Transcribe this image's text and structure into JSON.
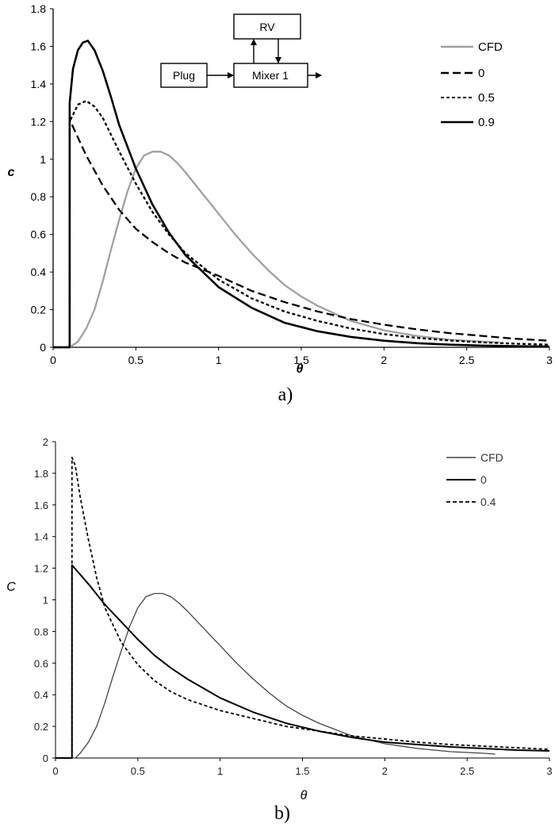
{
  "chart_data": [
    {
      "type": "line",
      "caption": "a)",
      "xlabel": "θ",
      "ylabel": "c",
      "xlim": [
        0,
        3
      ],
      "ylim": [
        0,
        1.8
      ],
      "xticks": [
        "0",
        "0.5",
        "1",
        "1.5",
        "2",
        "2.5",
        "3"
      ],
      "yticks": [
        "0",
        "0.2",
        "0.4",
        "0.6",
        "0.8",
        "1",
        "1.2",
        "1.4",
        "1.6",
        "1.8"
      ],
      "grid": false,
      "legend_position": "top-right",
      "inset_diagram": {
        "blocks": [
          "RV",
          "Plug",
          "Mixer 1"
        ]
      },
      "series": [
        {
          "name": "CFD",
          "color": "#a0a0a0",
          "dash": "solid",
          "x": [
            0,
            0.1,
            0.15,
            0.2,
            0.25,
            0.3,
            0.35,
            0.4,
            0.45,
            0.5,
            0.55,
            0.6,
            0.65,
            0.7,
            0.75,
            0.8,
            0.9,
            1.0,
            1.1,
            1.2,
            1.3,
            1.4,
            1.5,
            1.6,
            1.7,
            1.8,
            2.0,
            2.2,
            2.4,
            2.6,
            2.7
          ],
          "y": [
            0,
            0,
            0.03,
            0.1,
            0.2,
            0.35,
            0.52,
            0.68,
            0.83,
            0.95,
            1.02,
            1.04,
            1.04,
            1.02,
            0.98,
            0.93,
            0.82,
            0.71,
            0.6,
            0.5,
            0.41,
            0.33,
            0.27,
            0.22,
            0.18,
            0.14,
            0.09,
            0.06,
            0.04,
            0.03,
            0.025
          ]
        },
        {
          "name": "0",
          "color": "#000000",
          "dash": "long",
          "x": [
            0,
            0.1,
            0.1,
            0.2,
            0.3,
            0.4,
            0.5,
            0.6,
            0.7,
            0.8,
            1.0,
            1.2,
            1.4,
            1.6,
            1.8,
            2.0,
            2.2,
            2.4,
            2.6,
            2.8,
            3.0
          ],
          "y": [
            0,
            0,
            1.21,
            1.02,
            0.86,
            0.73,
            0.63,
            0.56,
            0.5,
            0.45,
            0.38,
            0.3,
            0.24,
            0.19,
            0.15,
            0.12,
            0.095,
            0.075,
            0.06,
            0.045,
            0.035
          ]
        },
        {
          "name": "0.5",
          "color": "#000000",
          "dash": "short",
          "x": [
            0,
            0.1,
            0.1,
            0.15,
            0.2,
            0.25,
            0.3,
            0.35,
            0.4,
            0.5,
            0.6,
            0.7,
            0.8,
            1.0,
            1.2,
            1.4,
            1.6,
            1.8,
            2.0,
            2.2,
            2.4,
            2.6,
            2.8,
            3.0
          ],
          "y": [
            0,
            0,
            1.2,
            1.29,
            1.31,
            1.28,
            1.22,
            1.13,
            1.04,
            0.87,
            0.72,
            0.6,
            0.5,
            0.36,
            0.26,
            0.19,
            0.14,
            0.1,
            0.07,
            0.05,
            0.036,
            0.026,
            0.019,
            0.014
          ]
        },
        {
          "name": "0.9",
          "color": "#000000",
          "dash": "solid",
          "x": [
            0,
            0.1,
            0.1,
            0.12,
            0.15,
            0.18,
            0.21,
            0.25,
            0.3,
            0.35,
            0.4,
            0.5,
            0.6,
            0.7,
            0.8,
            1.0,
            1.2,
            1.4,
            1.6,
            1.8,
            2.0,
            2.2,
            2.4,
            2.6,
            2.8,
            3.0
          ],
          "y": [
            0,
            0,
            1.3,
            1.48,
            1.58,
            1.62,
            1.63,
            1.58,
            1.47,
            1.33,
            1.18,
            0.95,
            0.76,
            0.61,
            0.49,
            0.32,
            0.21,
            0.13,
            0.085,
            0.055,
            0.035,
            0.022,
            0.014,
            0.009,
            0.006,
            0.004
          ]
        }
      ]
    },
    {
      "type": "line",
      "caption": "b)",
      "xlabel": "θ",
      "ylabel": "C",
      "xlim": [
        0,
        3
      ],
      "ylim": [
        0,
        2
      ],
      "xticks": [
        "0",
        "0.5",
        "1",
        "1.5",
        "2",
        "2.5",
        "3"
      ],
      "yticks": [
        "0",
        "0.2",
        "0.4",
        "0.6",
        "0.8",
        "1",
        "1.2",
        "1.4",
        "1.6",
        "1.8",
        "2"
      ],
      "grid": false,
      "legend_position": "top-right",
      "series": [
        {
          "name": "CFD",
          "color": "#444444",
          "dash": "solid",
          "x": [
            0,
            0.12,
            0.15,
            0.2,
            0.25,
            0.3,
            0.35,
            0.4,
            0.45,
            0.5,
            0.55,
            0.6,
            0.65,
            0.7,
            0.75,
            0.8,
            0.9,
            1.0,
            1.1,
            1.2,
            1.3,
            1.4,
            1.5,
            1.6,
            1.7,
            1.8,
            2.0,
            2.2,
            2.4,
            2.6,
            2.67
          ],
          "y": [
            0,
            0,
            0.03,
            0.1,
            0.2,
            0.35,
            0.52,
            0.68,
            0.83,
            0.95,
            1.02,
            1.04,
            1.04,
            1.02,
            0.98,
            0.93,
            0.82,
            0.71,
            0.6,
            0.5,
            0.41,
            0.33,
            0.27,
            0.22,
            0.18,
            0.14,
            0.09,
            0.06,
            0.04,
            0.03,
            0.025
          ]
        },
        {
          "name": "0",
          "color": "#000000",
          "dash": "solid",
          "x": [
            0,
            0.1,
            0.1,
            0.2,
            0.3,
            0.4,
            0.5,
            0.6,
            0.7,
            0.8,
            1.0,
            1.2,
            1.4,
            1.6,
            1.8,
            2.0,
            2.2,
            2.4,
            2.6,
            2.8,
            3.0
          ],
          "y": [
            0,
            0,
            1.22,
            1.1,
            0.97,
            0.86,
            0.75,
            0.65,
            0.57,
            0.5,
            0.38,
            0.29,
            0.22,
            0.17,
            0.13,
            0.1,
            0.085,
            0.07,
            0.06,
            0.05,
            0.045
          ]
        },
        {
          "name": "0.4",
          "color": "#000000",
          "dash": "short",
          "x": [
            0,
            0.1,
            0.1,
            0.12,
            0.15,
            0.2,
            0.25,
            0.3,
            0.4,
            0.5,
            0.6,
            0.7,
            0.8,
            1.0,
            1.2,
            1.4,
            1.6,
            1.8,
            2.0,
            2.2,
            2.4,
            2.6,
            2.8,
            3.0
          ],
          "y": [
            0,
            0,
            1.9,
            1.85,
            1.65,
            1.38,
            1.14,
            0.95,
            0.73,
            0.59,
            0.49,
            0.42,
            0.37,
            0.3,
            0.25,
            0.2,
            0.17,
            0.14,
            0.12,
            0.1,
            0.085,
            0.075,
            0.065,
            0.055
          ]
        }
      ]
    }
  ]
}
